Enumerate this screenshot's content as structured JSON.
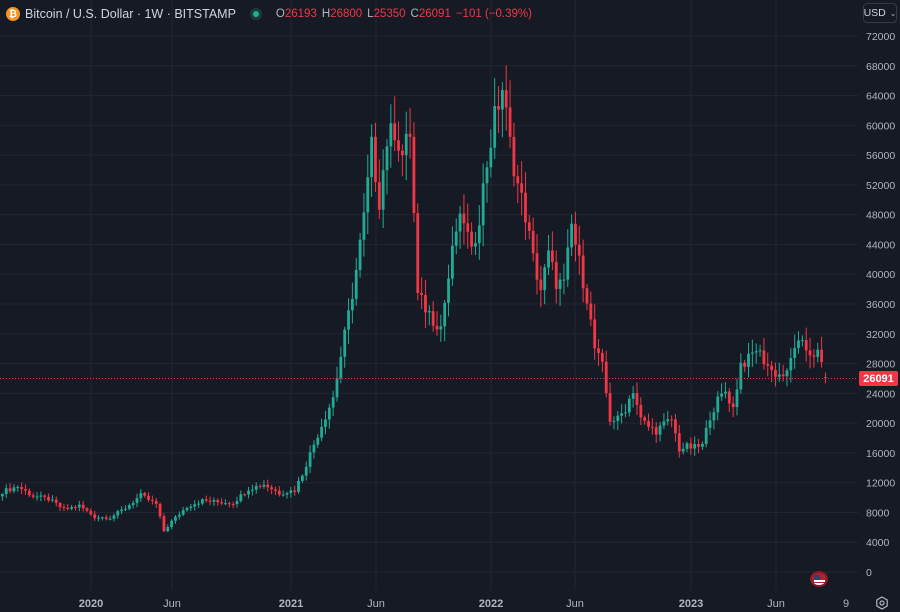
{
  "legend": {
    "symbol_icon": "bitcoin-icon",
    "symbol_glyph": "₿",
    "title": "Bitcoin / U.S. Dollar · 1W · BITSTAMP",
    "market_status": "open",
    "open_label": "O",
    "open_value": "26193",
    "high_label": "H",
    "high_value": "26800",
    "low_label": "L",
    "low_value": "25350",
    "close_label": "C",
    "close_value": "26091",
    "change": "−101 (−0.39%)"
  },
  "currency_button": {
    "label": "USD",
    "icon": "chevron-down-icon"
  },
  "last_price_label": "26091",
  "colors": {
    "background": "#161a25",
    "grid": "#232632",
    "up": "#22ab94",
    "down": "#f23645",
    "text": "#b2b5be",
    "last_price_line": "#f23645"
  },
  "chart_data": {
    "type": "candlestick",
    "title": "Bitcoin / U.S. Dollar · 1W · BITSTAMP",
    "xlabel": "",
    "ylabel": "USD",
    "ylim": [
      0,
      72000
    ],
    "grid": true,
    "y_ticks": [
      0,
      4000,
      8000,
      12000,
      16000,
      20000,
      24000,
      28000,
      32000,
      36000,
      40000,
      44000,
      48000,
      52000,
      56000,
      60000,
      64000,
      68000,
      72000
    ],
    "x_tick_labels": [
      "2020",
      "Jun",
      "2021",
      "Jun",
      "2022",
      "Jun",
      "2023",
      "Jun",
      "9"
    ],
    "last_price": 26091,
    "approx_weekly_close": [
      {
        "period": "2019-Aug",
        "close": 11000
      },
      {
        "period": "2019-Sep",
        "close": 9000
      },
      {
        "period": "2019-Oct",
        "close": 9200
      },
      {
        "period": "2019-Nov",
        "close": 7600
      },
      {
        "period": "2019-Dec",
        "close": 7200
      },
      {
        "period": "2020-Feb",
        "close": 10000
      },
      {
        "period": "2020-Mar",
        "close": 5800
      },
      {
        "period": "2020-May",
        "close": 9500
      },
      {
        "period": "2020-Aug",
        "close": 11800
      },
      {
        "period": "2020-Oct",
        "close": 13500
      },
      {
        "period": "2020-Dec",
        "close": 29000
      },
      {
        "period": "2021-Feb",
        "close": 46000
      },
      {
        "period": "2021-Apr",
        "close": 58000
      },
      {
        "period": "2021-Jun",
        "close": 35000
      },
      {
        "period": "2021-Jul",
        "close": 32000
      },
      {
        "period": "2021-Sep",
        "close": 47000
      },
      {
        "period": "2021-Nov",
        "close": 65000
      },
      {
        "period": "2022-Jan",
        "close": 38000
      },
      {
        "period": "2022-Mar",
        "close": 46000
      },
      {
        "period": "2022-Jun",
        "close": 20000
      },
      {
        "period": "2022-Aug",
        "close": 24000
      },
      {
        "period": "2022-Nov",
        "close": 16500
      },
      {
        "period": "2023-Jan",
        "close": 23000
      },
      {
        "period": "2023-Mar",
        "close": 28000
      },
      {
        "period": "2023-Apr",
        "close": 30000
      },
      {
        "period": "2023-Jun",
        "close": 26000
      },
      {
        "period": "2023-Jul",
        "close": 30500
      },
      {
        "period": "2023-Aug",
        "close": 26091
      }
    ]
  },
  "footer": {
    "settings_icon": "settings-icon",
    "flag_icon": "us-flag-icon"
  }
}
